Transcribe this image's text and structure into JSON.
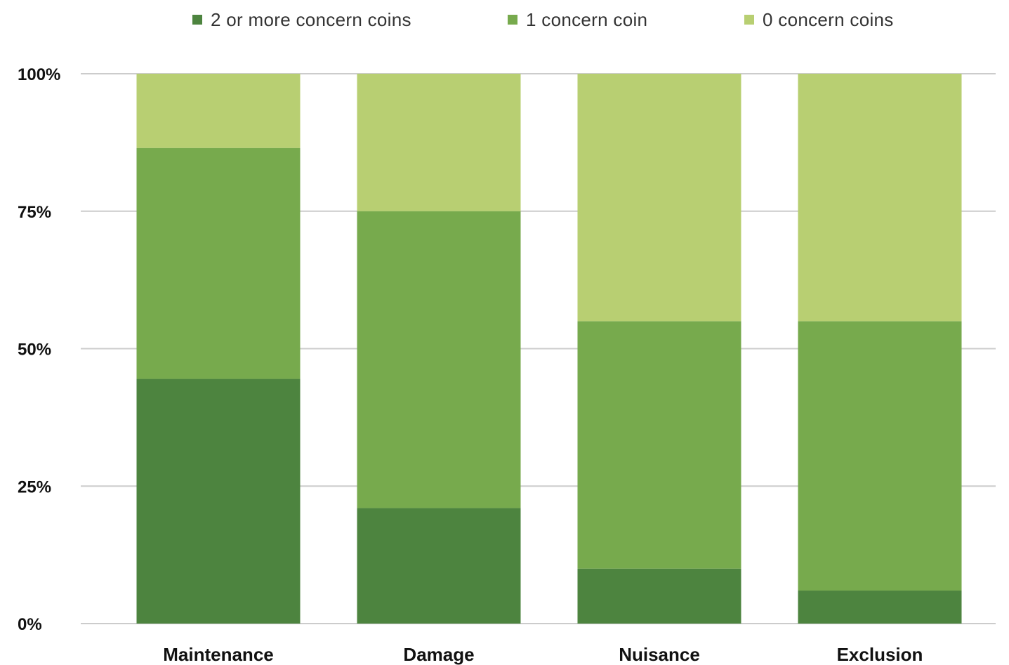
{
  "colors": {
    "two_plus": "#4d843f",
    "one": "#77aa4d",
    "zero": "#b8cf72",
    "grid": "#cccccc",
    "text": "#111111"
  },
  "legend": [
    {
      "label": "2 or more concern coins",
      "color_key": "two_plus"
    },
    {
      "label": "1 concern coin",
      "color_key": "one"
    },
    {
      "label": "0 concern coins",
      "color_key": "zero"
    }
  ],
  "chart_data": {
    "type": "bar",
    "stacked": true,
    "categories": [
      "Maintenance",
      "Damage",
      "Nuisance",
      "Exclusion"
    ],
    "series": [
      {
        "name": "2 or more concern coins",
        "values": [
          44.5,
          21,
          10,
          6
        ]
      },
      {
        "name": "1 concern coin",
        "values": [
          42,
          54,
          45,
          49
        ]
      },
      {
        "name": "0 concern coins",
        "values": [
          13.5,
          25,
          45,
          45
        ]
      }
    ],
    "ylim": [
      0,
      100
    ],
    "yticks": [
      "0%",
      "25%",
      "50%",
      "75%",
      "100%"
    ],
    "ytick_values": [
      0,
      25,
      50,
      75,
      100
    ],
    "grid": true,
    "legend_position": "top"
  }
}
